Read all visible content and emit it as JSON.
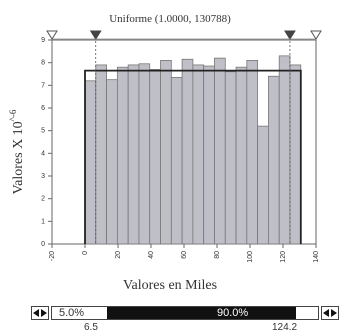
{
  "chart_data": {
    "type": "bar",
    "title": "Uniforme (1.0000, 130788)",
    "xlabel": "Valores en Miles",
    "ylabel": "Valores X 10^-6",
    "xlim": [
      -20,
      140
    ],
    "ylim": [
      0,
      9
    ],
    "x_ticks": [
      "-20",
      "0",
      "20",
      "40",
      "60",
      "80",
      "100",
      "120",
      "140"
    ],
    "y_ticks": [
      "0",
      "1",
      "2",
      "3",
      "4",
      "5",
      "6",
      "7",
      "8",
      "9"
    ],
    "bins": {
      "start": 0,
      "width": 6.539,
      "values": [
        7.2,
        7.9,
        7.25,
        7.8,
        7.9,
        7.95,
        7.7,
        8.1,
        7.35,
        8.15,
        7.9,
        7.85,
        8.2,
        7.6,
        7.8,
        8.1,
        5.2,
        7.4,
        8.3,
        7.9
      ]
    },
    "fitted_distribution": {
      "name": "Uniforme",
      "min": 1.0,
      "max": 130788,
      "density": 7.65
    },
    "markers": {
      "left_tip": "6.5",
      "right_tip": "124.2",
      "left_value": 6.5,
      "right_value": 124.2
    },
    "grid": false,
    "legend": "none"
  },
  "range_bar": {
    "left_percent": "5.0%",
    "middle_percent": "90.0%",
    "low_value": "6.5",
    "high_value": "124.2",
    "left_fraction": 0.05,
    "middle_fraction": 0.9,
    "right_fraction": 0.05
  }
}
